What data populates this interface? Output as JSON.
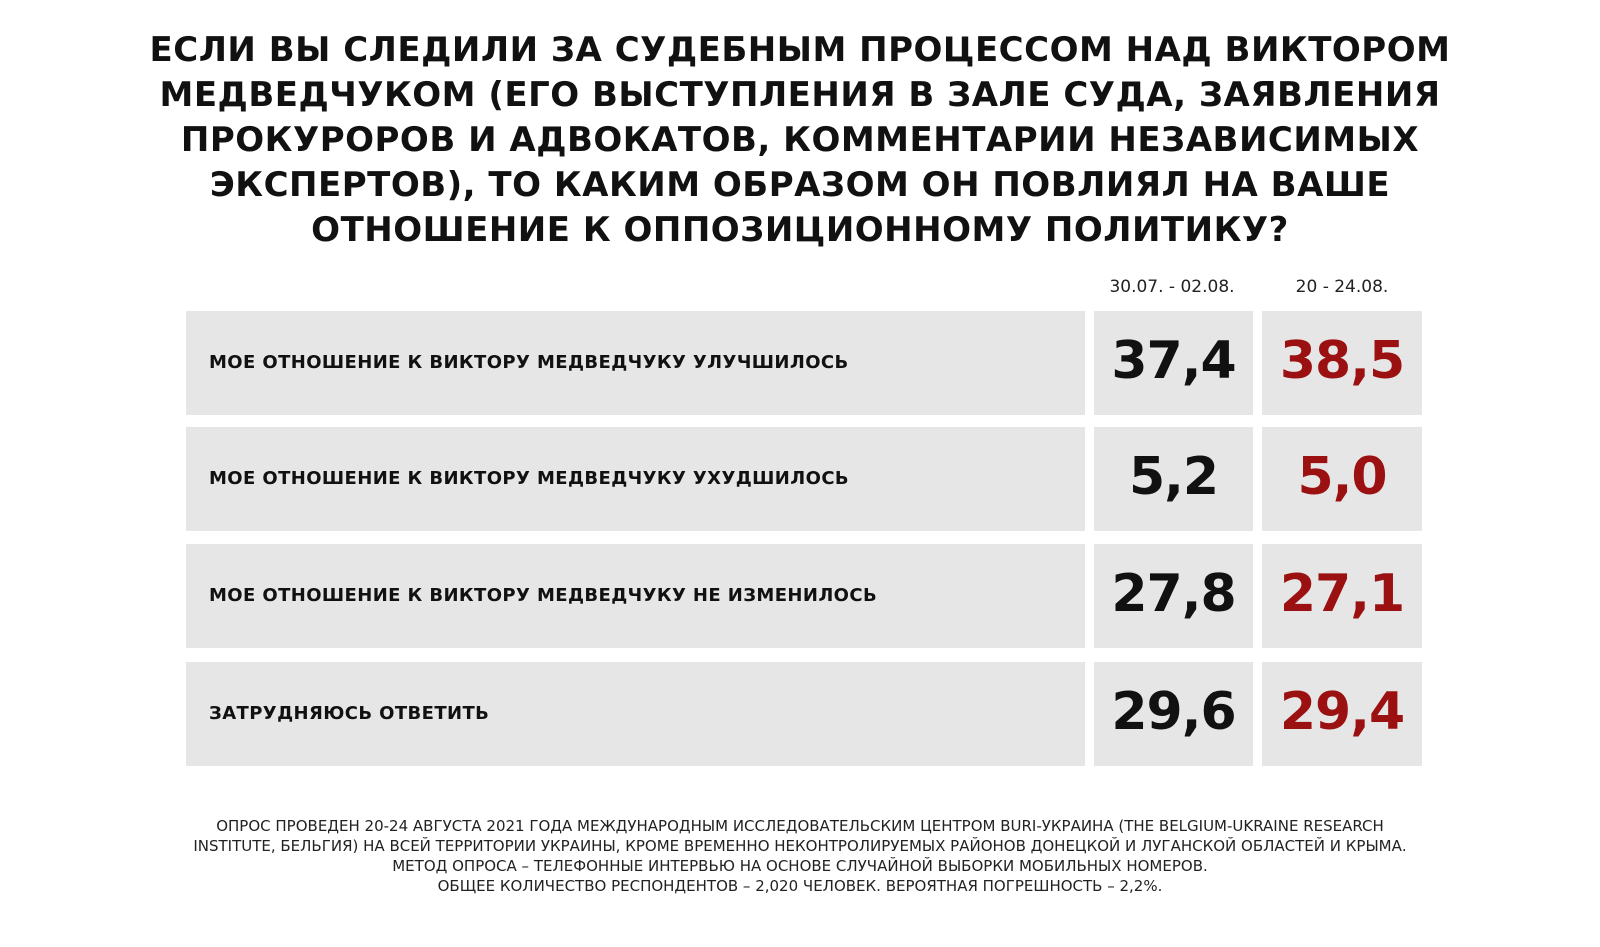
{
  "title_lines": [
    "ЕСЛИ ВЫ СЛЕДИЛИ ЗА СУДЕБНЫМ ПРОЦЕССОМ НАД ВИКТОРОМ",
    "МЕДВЕДЧУКОМ (ЕГО ВЫСТУПЛЕНИЯ В ЗАЛЕ СУДА, ЗАЯВЛЕНИЯ",
    "ПРОКУРОРОВ И АДВОКАТОВ, КОММЕНТАРИИ НЕЗАВИСИМЫХ",
    "ЭКСПЕРТОВ), ТО КАКИМ ОБРАЗОМ ОН ПОВЛИЯЛ НА ВАШЕ",
    "ОТНОШЕНИЕ К ОППОЗИЦИОННОМУ ПОЛИТИКУ?"
  ],
  "colors": {
    "first_period_value": "#111111",
    "second_period_value": "#9b1111",
    "cell_background": "#e6e6e6"
  },
  "chart_data": {
    "type": "table",
    "title": "ЕСЛИ ВЫ СЛЕДИЛИ ЗА СУДЕБНЫМ ПРОЦЕССОМ НАД ВИКТОРОМ МЕДВЕДЧУКОМ (ЕГО ВЫСТУПЛЕНИЯ В ЗАЛЕ СУДА, ЗАЯВЛЕНИЯ ПРОКУРОРОВ И АДВОКАТОВ, КОММЕНТАРИИ НЕЗАВИСИМЫХ ЭКСПЕРТОВ), ТО КАКИМ ОБРАЗОМ ОН ПОВЛИЯЛ НА ВАШЕ ОТНОШЕНИЕ К ОППОЗИЦИОННОМУ ПОЛИТИКУ?",
    "columns": [
      "30.07. - 02.08.",
      "20 - 24.08."
    ],
    "rows": [
      {
        "label": "МОЕ ОТНОШЕНИЕ К ВИКТОРУ МЕДВЕДЧУКУ УЛУЧШИЛОСЬ",
        "values": [
          "37,4",
          "38,5"
        ]
      },
      {
        "label": "МОЕ ОТНОШЕНИЕ К ВИКТОРУ МЕДВЕДЧУКУ УХУДШИЛОСЬ",
        "values": [
          "5,2",
          "5,0"
        ]
      },
      {
        "label": "МОЕ ОТНОШЕНИЕ К ВИКТОРУ МЕДВЕДЧУКУ НЕ ИЗМЕНИЛОСЬ",
        "values": [
          "27,8",
          "27,1"
        ]
      },
      {
        "label": "ЗАТРУДНЯЮСЬ ОТВЕТИТЬ",
        "values": [
          "29,6",
          "29,4"
        ]
      }
    ]
  },
  "footnote_lines": [
    "ОПРОС ПРОВЕДЕН 20-24 АВГУСТА 2021 ГОДА МЕЖДУНАРОДНЫМ ИССЛЕДОВАТЕЛЬСКИМ ЦЕНТРОМ BURI-УКРАИНА (THE BELGIUM-UKRAINE RESEARCH",
    "INSTITUTE, БЕЛЬГИЯ) НА ВСЕЙ ТЕРРИТОРИИ УКРАИНЫ, КРОМЕ ВРЕМЕННО НЕКОНТРОЛИРУЕМЫХ РАЙОНОВ ДОНЕЦКОЙ И ЛУГАНСКОЙ ОБЛАСТЕЙ И КРЫМА.",
    "МЕТОД ОПРОСА – ТЕЛЕФОННЫЕ ИНТЕРВЬЮ НА ОСНОВЕ СЛУЧАЙНОЙ ВЫБОРКИ МОБИЛЬНЫХ НОМЕРОВ.",
    "ОБЩЕЕ КОЛИЧЕСТВО РЕСПОНДЕНТОВ – 2,020 ЧЕЛОВЕК. ВЕРОЯТНАЯ ПОГРЕШНОСТЬ – 2,2%."
  ]
}
